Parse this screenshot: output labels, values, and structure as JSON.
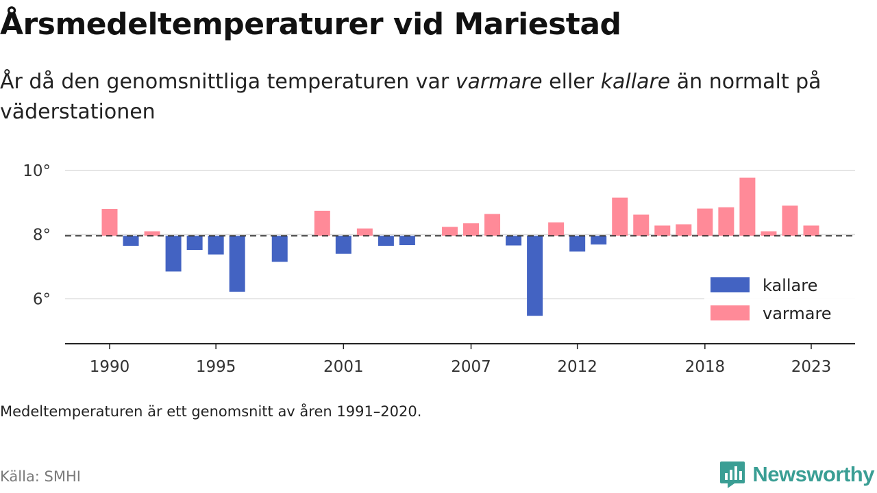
{
  "title": "Årsmedeltemperaturer vid Mariestad",
  "subtitle": {
    "part1": "År då den genomsnittliga temperaturen var ",
    "em1": "varmare",
    "part2": " eller ",
    "em2": "kallare",
    "part3": " än normalt på väderstationen"
  },
  "note": "Medeltemperaturen är ett genomsnitt av åren 1991–2020.",
  "source": "Källa: SMHI",
  "brand": {
    "name": "Newsworthy",
    "logo_icon": "newsworthy-chart-icon",
    "color": "#3a9e94"
  },
  "colors": {
    "kallare": "#4363c2",
    "varmare": "#ff8a98",
    "baseline": "#333333",
    "grid": "#dddddd"
  },
  "chart_data": {
    "type": "bar",
    "baseline": 7.96,
    "baseline_style": "dashed",
    "ylim": [
      4.6,
      10.4
    ],
    "yticks": [
      6,
      8,
      10
    ],
    "ytick_labels": [
      "6°",
      "8°",
      "10°"
    ],
    "xticks": [
      1990,
      1995,
      2001,
      2007,
      2012,
      2018,
      2023
    ],
    "xtick_labels": [
      "1990",
      "1995",
      "2001",
      "2007",
      "2012",
      "2018",
      "2023"
    ],
    "grid": true,
    "legend_position": "right",
    "series": [
      {
        "name": "kallare",
        "color": "#4363c2"
      },
      {
        "name": "varmare",
        "color": "#ff8a98"
      }
    ],
    "x": [
      1990,
      1991,
      1992,
      1993,
      1994,
      1995,
      1996,
      1997,
      1998,
      1999,
      2000,
      2001,
      2002,
      2003,
      2004,
      2005,
      2006,
      2007,
      2008,
      2009,
      2010,
      2011,
      2012,
      2013,
      2014,
      2015,
      2016,
      2017,
      2018,
      2019,
      2020,
      2021,
      2022,
      2023
    ],
    "values": [
      8.8,
      7.65,
      8.1,
      6.85,
      7.52,
      7.38,
      6.22,
      null,
      7.15,
      null,
      8.74,
      7.4,
      8.19,
      7.65,
      7.67,
      null,
      8.24,
      8.35,
      8.64,
      7.66,
      5.47,
      8.38,
      7.47,
      7.69,
      9.15,
      8.62,
      8.28,
      8.32,
      8.81,
      8.85,
      9.77,
      8.1,
      8.9,
      8.28
    ]
  }
}
